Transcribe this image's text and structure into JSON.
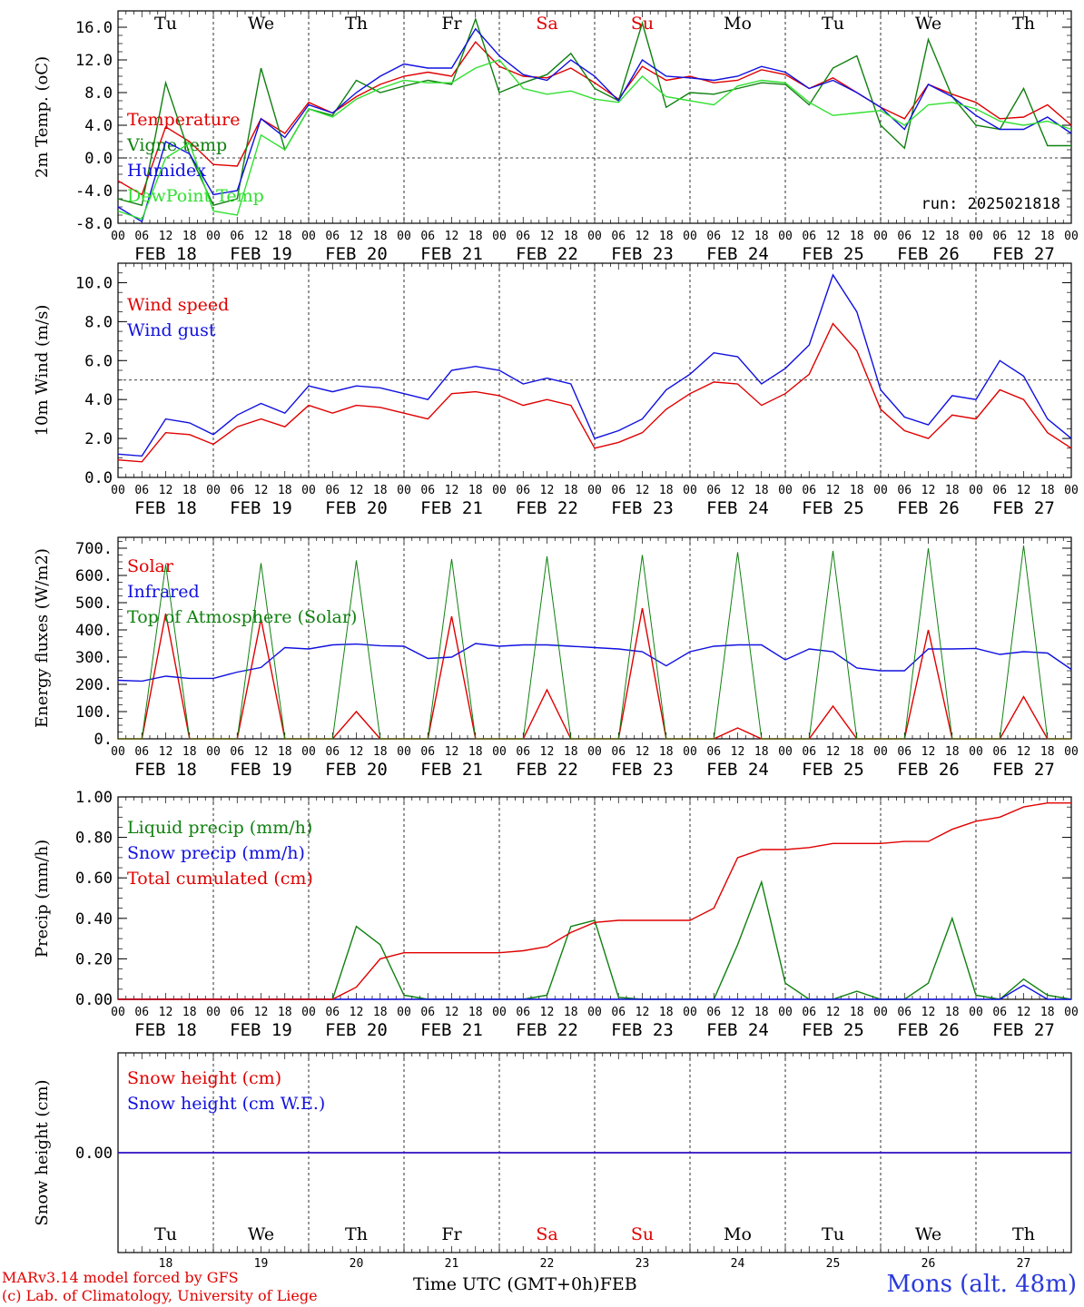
{
  "run_label": "run: 2025021818",
  "footer": {
    "model_line1": "MARv3.14 model forced by GFS",
    "model_line2": "(c) Lab. of Climatology, University of Liege",
    "time_axis": "Time UTC (GMT+0h)",
    "month": "FEB",
    "station": "Mons (alt. 48m)"
  },
  "days": [
    {
      "abbr": "Tu",
      "date": "FEB 18",
      "num": "18",
      "weekend": false
    },
    {
      "abbr": "We",
      "date": "FEB 19",
      "num": "19",
      "weekend": false
    },
    {
      "abbr": "Th",
      "date": "FEB 20",
      "num": "20",
      "weekend": false
    },
    {
      "abbr": "Fr",
      "date": "FEB 21",
      "num": "21",
      "weekend": false
    },
    {
      "abbr": "Sa",
      "date": "FEB 22",
      "num": "22",
      "weekend": true
    },
    {
      "abbr": "Su",
      "date": "FEB 23",
      "num": "23",
      "weekend": true
    },
    {
      "abbr": "Mo",
      "date": "FEB 24",
      "num": "24",
      "weekend": false
    },
    {
      "abbr": "Tu",
      "date": "FEB 25",
      "num": "25",
      "weekend": false
    },
    {
      "abbr": "We",
      "date": "FEB 26",
      "num": "26",
      "weekend": false
    },
    {
      "abbr": "Th",
      "date": "FEB 27",
      "num": "27",
      "weekend": false
    }
  ],
  "hour_ticks": [
    "00",
    "06",
    "12",
    "18"
  ],
  "final_tick": "00",
  "colors": {
    "red": "#e00000",
    "blue": "#1010e0",
    "dgreen": "#108010",
    "lgreen": "#30e030",
    "weekend": "#e00000"
  },
  "chart_data": [
    {
      "type": "line",
      "ylabel": "2m Temp. (oC)",
      "ylim": [
        -8,
        18
      ],
      "yticks": [
        "-8.0",
        "-4.0",
        "0.0",
        "4.0",
        "8.0",
        "12.0",
        "16.0"
      ],
      "ytick_values": [
        -8,
        -4,
        0,
        4,
        8,
        12,
        16
      ],
      "ref_line": 0,
      "show_day_abbr": true,
      "x": [
        0,
        6,
        12,
        18,
        24,
        30,
        36,
        42,
        48,
        54,
        60,
        66,
        72,
        78,
        84,
        90,
        96,
        102,
        108,
        114,
        120,
        126,
        132,
        138,
        144,
        150,
        156,
        162,
        168,
        174,
        180,
        186,
        192,
        198,
        204,
        210,
        216,
        222,
        228,
        234,
        240
      ],
      "series": [
        {
          "name": "Temperature",
          "color": "red",
          "values": [
            -2.8,
            -4.5,
            3.8,
            2.0,
            -0.8,
            -1.0,
            4.8,
            3.0,
            6.8,
            5.5,
            7.5,
            9.0,
            10.0,
            10.5,
            10.0,
            14.2,
            11.2,
            10.0,
            9.8,
            11.0,
            9.2,
            7.2,
            11.2,
            9.5,
            10.0,
            9.2,
            9.5,
            10.8,
            10.2,
            8.5,
            9.8,
            8.0,
            6.2,
            4.8,
            9.0,
            7.8,
            6.8,
            4.8,
            5.0,
            6.5,
            4.0
          ]
        },
        {
          "name": "Vigne temp",
          "color": "dgreen",
          "values": [
            -5.0,
            -5.8,
            9.2,
            0.5,
            -5.8,
            -5.0,
            11.0,
            1.0,
            6.0,
            5.2,
            9.5,
            8.0,
            8.8,
            9.5,
            9.0,
            17.0,
            8.0,
            9.2,
            10.2,
            12.8,
            8.5,
            7.0,
            16.5,
            6.2,
            8.0,
            7.8,
            8.5,
            9.2,
            9.0,
            6.5,
            11.0,
            12.5,
            4.0,
            1.2,
            14.5,
            7.5,
            4.0,
            3.5,
            8.5,
            1.5,
            1.5
          ]
        },
        {
          "name": "Humidex",
          "color": "blue",
          "values": [
            -6.0,
            -7.8,
            2.0,
            0.5,
            -4.5,
            -4.0,
            4.8,
            2.5,
            6.5,
            5.5,
            8.0,
            10.0,
            11.5,
            11.0,
            11.0,
            15.8,
            12.5,
            10.2,
            9.5,
            12.0,
            10.0,
            7.0,
            12.0,
            10.0,
            9.8,
            9.5,
            10.0,
            11.2,
            10.5,
            8.5,
            9.5,
            8.0,
            6.2,
            3.5,
            9.0,
            7.5,
            5.2,
            3.5,
            3.5,
            5.0,
            3.0
          ]
        },
        {
          "name": "DewPoint Temp",
          "color": "lgreen",
          "values": [
            -6.5,
            -7.5,
            0.0,
            1.8,
            -6.5,
            -7.0,
            2.8,
            1.0,
            6.0,
            5.0,
            7.2,
            8.5,
            9.5,
            9.2,
            9.2,
            11.0,
            12.0,
            8.5,
            7.8,
            8.2,
            7.2,
            6.8,
            10.0,
            7.5,
            7.0,
            6.5,
            8.8,
            9.5,
            9.2,
            6.8,
            5.2,
            5.5,
            5.8,
            4.0,
            6.5,
            6.8,
            6.0,
            4.5,
            4.0,
            4.5,
            3.5
          ]
        }
      ]
    },
    {
      "type": "line",
      "ylabel": "10m Wind (m/s)",
      "ylim": [
        0,
        11
      ],
      "yticks": [
        "0.0",
        "2.0",
        "4.0",
        "6.0",
        "8.0",
        "10.0"
      ],
      "ytick_values": [
        0,
        2,
        4,
        6,
        8,
        10
      ],
      "ref_line": 5,
      "show_day_abbr": false,
      "x": [
        0,
        6,
        12,
        18,
        24,
        30,
        36,
        42,
        48,
        54,
        60,
        66,
        72,
        78,
        84,
        90,
        96,
        102,
        108,
        114,
        120,
        126,
        132,
        138,
        144,
        150,
        156,
        162,
        168,
        174,
        180,
        186,
        192,
        198,
        204,
        210,
        216,
        222,
        228,
        234,
        240
      ],
      "series": [
        {
          "name": "Wind speed",
          "color": "red",
          "values": [
            0.9,
            0.8,
            2.3,
            2.2,
            1.7,
            2.6,
            3.0,
            2.6,
            3.7,
            3.3,
            3.7,
            3.6,
            3.3,
            3.0,
            4.3,
            4.4,
            4.2,
            3.7,
            4.0,
            3.7,
            1.5,
            1.8,
            2.3,
            3.5,
            4.3,
            4.9,
            4.8,
            3.7,
            4.3,
            5.3,
            7.9,
            6.5,
            3.5,
            2.4,
            2.0,
            3.2,
            3.0,
            4.5,
            4.0,
            2.3,
            1.5
          ]
        },
        {
          "name": "Wind gust",
          "color": "blue",
          "values": [
            1.2,
            1.1,
            3.0,
            2.8,
            2.2,
            3.2,
            3.8,
            3.3,
            4.7,
            4.4,
            4.7,
            4.6,
            4.3,
            4.0,
            5.5,
            5.7,
            5.5,
            4.8,
            5.1,
            4.8,
            2.0,
            2.4,
            3.0,
            4.5,
            5.3,
            6.4,
            6.2,
            4.8,
            5.6,
            6.8,
            10.4,
            8.5,
            4.5,
            3.1,
            2.7,
            4.2,
            4.0,
            6.0,
            5.2,
            3.0,
            2.0
          ]
        }
      ]
    },
    {
      "type": "line",
      "ylabel": "Energy fluxes (W/m2)",
      "ylim": [
        0,
        740
      ],
      "yticks": [
        "0.",
        "100.",
        "200.",
        "300.",
        "400.",
        "500.",
        "600.",
        "700."
      ],
      "ytick_values": [
        0,
        100,
        200,
        300,
        400,
        500,
        600,
        700
      ],
      "ref_line": null,
      "show_day_abbr": false,
      "x": [
        0,
        6,
        12,
        18,
        24,
        30,
        36,
        42,
        48,
        54,
        60,
        66,
        72,
        78,
        84,
        90,
        96,
        102,
        108,
        114,
        120,
        126,
        132,
        138,
        144,
        150,
        156,
        162,
        168,
        174,
        180,
        186,
        192,
        198,
        204,
        210,
        216,
        222,
        228,
        234,
        240
      ],
      "series": [
        {
          "name": "Solar",
          "color": "red",
          "values": [
            0,
            0,
            460,
            0,
            0,
            0,
            440,
            0,
            0,
            0,
            100,
            0,
            0,
            0,
            450,
            0,
            0,
            0,
            180,
            0,
            0,
            0,
            480,
            0,
            0,
            0,
            40,
            0,
            0,
            0,
            120,
            0,
            0,
            0,
            400,
            0,
            0,
            0,
            155,
            0,
            0
          ]
        },
        {
          "name": "Infrared",
          "color": "blue",
          "values": [
            215,
            212,
            230,
            222,
            222,
            245,
            262,
            335,
            330,
            345,
            348,
            342,
            340,
            295,
            300,
            350,
            340,
            345,
            345,
            340,
            335,
            330,
            320,
            268,
            320,
            340,
            345,
            345,
            290,
            330,
            320,
            260,
            250,
            250,
            330,
            330,
            332,
            310,
            320,
            315,
            255
          ]
        },
        {
          "name": "Top of Atmosphere (Solar)",
          "color": "dgreen",
          "values": [
            0,
            0,
            640,
            0,
            0,
            0,
            645,
            0,
            0,
            0,
            655,
            0,
            0,
            0,
            660,
            0,
            0,
            0,
            670,
            0,
            0,
            0,
            675,
            0,
            0,
            0,
            685,
            0,
            0,
            0,
            690,
            0,
            0,
            0,
            700,
            0,
            0,
            0,
            710,
            0,
            0
          ]
        }
      ]
    },
    {
      "type": "line",
      "ylabel": "Precip (mm/h)",
      "ylim": [
        0,
        1
      ],
      "yticks": [
        "0.00",
        "0.20",
        "0.40",
        "0.60",
        "0.80",
        "1.00"
      ],
      "ytick_values": [
        0,
        0.2,
        0.4,
        0.6,
        0.8,
        1.0
      ],
      "ref_line": null,
      "show_day_abbr": false,
      "x": [
        0,
        6,
        12,
        18,
        24,
        30,
        36,
        42,
        48,
        54,
        60,
        66,
        72,
        78,
        84,
        90,
        96,
        102,
        108,
        114,
        120,
        126,
        132,
        138,
        144,
        150,
        156,
        162,
        168,
        174,
        180,
        186,
        192,
        198,
        204,
        210,
        216,
        222,
        228,
        234,
        240
      ],
      "series": [
        {
          "name": "Liquid precip (mm/h)",
          "color": "dgreen",
          "values": [
            0,
            0,
            0,
            0,
            0,
            0,
            0,
            0,
            0,
            0,
            0.36,
            0.27,
            0.02,
            0,
            0,
            0,
            0,
            0,
            0.02,
            0.36,
            0.39,
            0.01,
            0,
            0,
            0,
            0,
            0.27,
            0.58,
            0.08,
            0,
            0,
            0.04,
            0,
            0,
            0.08,
            0.4,
            0.02,
            0,
            0.1,
            0.02,
            0
          ]
        },
        {
          "name": "Snow precip (mm/h)",
          "color": "blue",
          "values": [
            0,
            0,
            0,
            0,
            0,
            0,
            0,
            0,
            0,
            0,
            0,
            0,
            0,
            0,
            0,
            0,
            0,
            0,
            0,
            0,
            0,
            0,
            0,
            0,
            0,
            0,
            0,
            0,
            0,
            0,
            0,
            0,
            0,
            0,
            0,
            0,
            0,
            0,
            0.07,
            0,
            0
          ]
        },
        {
          "name": "Total cumulated (cm)",
          "color": "red",
          "values": [
            0,
            0,
            0,
            0,
            0,
            0,
            0,
            0,
            0,
            0,
            0.06,
            0.2,
            0.23,
            0.23,
            0.23,
            0.23,
            0.23,
            0.24,
            0.26,
            0.33,
            0.38,
            0.39,
            0.39,
            0.39,
            0.39,
            0.45,
            0.7,
            0.74,
            0.74,
            0.75,
            0.77,
            0.77,
            0.77,
            0.78,
            0.78,
            0.84,
            0.88,
            0.9,
            0.95,
            0.97,
            0.97
          ]
        }
      ]
    },
    {
      "type": "line",
      "ylabel": "Snow height (cm)",
      "ylim": [
        -1,
        1
      ],
      "yticks": [
        "0.00"
      ],
      "ytick_values": [
        0
      ],
      "ref_line": null,
      "show_day_abbr": true,
      "x": [
        0,
        240
      ],
      "series": [
        {
          "name": "Snow height (cm)",
          "color": "red",
          "values": [
            0,
            0
          ]
        },
        {
          "name": "Snow height (cm W.E.)",
          "color": "blue",
          "values": [
            0,
            0
          ]
        }
      ]
    }
  ]
}
